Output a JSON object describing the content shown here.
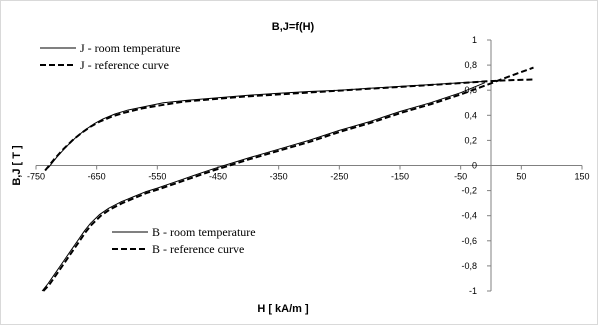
{
  "chart_data": {
    "type": "line",
    "title": "B,J=f(H)",
    "xlabel": "H [ kA/m ]",
    "ylabel": "B,J [ T ]",
    "xlim": [
      -750,
      150
    ],
    "ylim": [
      -1,
      1
    ],
    "x_ticks": [
      -750,
      -650,
      -550,
      -450,
      -350,
      -250,
      -150,
      -50,
      50,
      150
    ],
    "x_tick_labels": [
      "-750",
      "-650",
      "-550",
      "-450",
      "-350",
      "-250",
      "-150",
      "-50",
      "50",
      "150"
    ],
    "y_ticks": [
      -1,
      -0.8,
      -0.6,
      -0.4,
      -0.2,
      0,
      0.2,
      0.4,
      0.6,
      0.8,
      1
    ],
    "y_tick_labels": [
      "-1",
      "-0,8",
      "-0,6",
      "-0,4",
      "-0,2",
      "0",
      "0,2",
      "0,4",
      "0,6",
      "0,8",
      "1"
    ],
    "grid": false,
    "legend_groups": [
      {
        "placement": "top-left",
        "entries": [
          "J - room temperature",
          "J - reference curve"
        ]
      },
      {
        "placement": "bottom-center",
        "entries": [
          "B - room temperature",
          "B - reference curve"
        ]
      }
    ],
    "series": [
      {
        "name": "J - room temperature",
        "style": "solid",
        "x": [
          -730,
          -715,
          -700,
          -685,
          -670,
          -655,
          -640,
          -620,
          -600,
          -570,
          -540,
          -500,
          -450,
          -400,
          -350,
          -300,
          -250,
          -200,
          -150,
          -100,
          -50,
          -10
        ],
        "y": [
          -0.02,
          0.07,
          0.15,
          0.22,
          0.28,
          0.33,
          0.37,
          0.41,
          0.44,
          0.47,
          0.5,
          0.52,
          0.54,
          0.56,
          0.575,
          0.59,
          0.6,
          0.615,
          0.63,
          0.645,
          0.66,
          0.67
        ]
      },
      {
        "name": "J - reference curve",
        "style": "dashed",
        "x": [
          -735,
          -720,
          -705,
          -690,
          -675,
          -660,
          -645,
          -625,
          -605,
          -575,
          -545,
          -505,
          -455,
          -405,
          -355,
          -305,
          -255,
          -205,
          -155,
          -105,
          -55,
          -10,
          30,
          70
        ],
        "y": [
          -0.04,
          0.05,
          0.13,
          0.2,
          0.26,
          0.31,
          0.35,
          0.39,
          0.42,
          0.455,
          0.48,
          0.51,
          0.53,
          0.55,
          0.565,
          0.58,
          0.595,
          0.61,
          0.625,
          0.64,
          0.655,
          0.67,
          0.68,
          0.685
        ]
      },
      {
        "name": "B - room temperature",
        "style": "solid",
        "x": [
          -740,
          -730,
          -720,
          -710,
          -700,
          -690,
          -680,
          -670,
          -660,
          -645,
          -630,
          -610,
          -590,
          -570,
          -550,
          -520,
          -490,
          -460,
          -440,
          -400,
          -350,
          -300,
          -250,
          -200,
          -150,
          -100,
          -50,
          -10
        ],
        "y": [
          -1.0,
          -0.94,
          -0.87,
          -0.8,
          -0.73,
          -0.66,
          -0.59,
          -0.52,
          -0.46,
          -0.39,
          -0.34,
          -0.29,
          -0.25,
          -0.21,
          -0.18,
          -0.13,
          -0.08,
          -0.03,
          0.0,
          0.06,
          0.13,
          0.2,
          0.28,
          0.35,
          0.43,
          0.5,
          0.58,
          0.66
        ]
      },
      {
        "name": "B - reference curve",
        "style": "dashed",
        "x": [
          -738,
          -728,
          -718,
          -708,
          -698,
          -688,
          -678,
          -668,
          -658,
          -643,
          -628,
          -608,
          -588,
          -568,
          -548,
          -518,
          -488,
          -458,
          -438,
          -398,
          -348,
          -298,
          -248,
          -198,
          -148,
          -98,
          -48,
          -8,
          30,
          70
        ],
        "y": [
          -1.0,
          -0.95,
          -0.88,
          -0.81,
          -0.74,
          -0.67,
          -0.6,
          -0.53,
          -0.47,
          -0.4,
          -0.35,
          -0.3,
          -0.26,
          -0.22,
          -0.19,
          -0.14,
          -0.09,
          -0.04,
          -0.01,
          0.05,
          0.12,
          0.19,
          0.27,
          0.34,
          0.42,
          0.49,
          0.57,
          0.64,
          0.71,
          0.78
        ]
      }
    ]
  }
}
